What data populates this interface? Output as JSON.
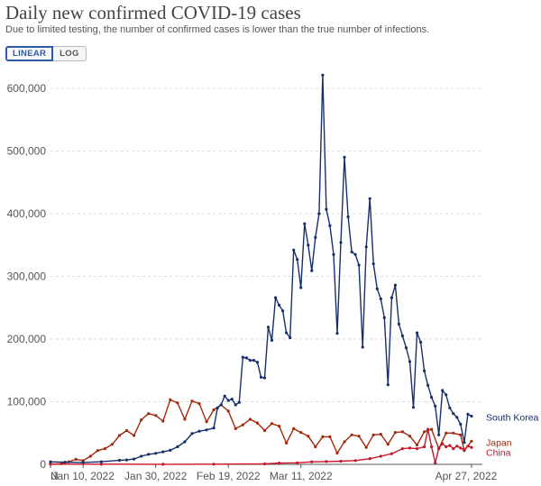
{
  "header": {
    "title": "Daily new confirmed COVID-19 cases",
    "subtitle": "Due to limited testing, the number of confirmed cases is lower than the true number of infections."
  },
  "toggle": {
    "linear_label": "LINEAR",
    "log_label": "LOG",
    "selected": "LINEAR"
  },
  "colors": {
    "south_korea": "#18306a",
    "japan": "#a3290b",
    "china": "#c8152a",
    "grid": "#dddddd",
    "axis": "#555555"
  },
  "chart_data": {
    "type": "line",
    "title": "Daily new confirmed COVID-19 cases",
    "subtitle": "Due to limited testing, the number of confirmed cases is lower than the true number of infections.",
    "x_type": "date",
    "xlim": [
      "2022-01-01",
      "2022-04-30"
    ],
    "ylim": [
      0,
      600000
    ],
    "y_ticks": [
      0,
      100000,
      200000,
      300000,
      400000,
      500000,
      600000
    ],
    "y_tick_labels": [
      "0",
      "100,000",
      "200,000",
      "300,000",
      "400,000",
      "500,000",
      "600,000"
    ],
    "x_ticks": [
      "2022-01-01",
      "2022-01-10",
      "2022-01-30",
      "2022-02-19",
      "2022-03-11",
      "2022-04-27"
    ],
    "x_tick_labels": [
      "N",
      "Jan 10, 2022",
      "Jan 30, 2022",
      "Feb 19, 2022",
      "Mar 11, 2022",
      "Apr 27, 2022"
    ],
    "grid": true,
    "legend": "inline-right",
    "series": [
      {
        "name": "South Korea",
        "points": [
          [
            "2022-01-01",
            4000
          ],
          [
            "2022-01-05",
            3500
          ],
          [
            "2022-01-10",
            3000
          ],
          [
            "2022-01-15",
            4200
          ],
          [
            "2022-01-20",
            6500
          ],
          [
            "2022-01-22",
            7000
          ],
          [
            "2022-01-24",
            8500
          ],
          [
            "2022-01-26",
            13000
          ],
          [
            "2022-01-28",
            16000
          ],
          [
            "2022-01-30",
            17500
          ],
          [
            "2022-02-01",
            20000
          ],
          [
            "2022-02-03",
            22500
          ],
          [
            "2022-02-05",
            28000
          ],
          [
            "2022-02-07",
            36000
          ],
          [
            "2022-02-09",
            49000
          ],
          [
            "2022-02-11",
            53000
          ],
          [
            "2022-02-13",
            55000
          ],
          [
            "2022-02-15",
            58000
          ],
          [
            "2022-02-16",
            90000
          ],
          [
            "2022-02-17",
            95000
          ],
          [
            "2022-02-18",
            109000
          ],
          [
            "2022-02-19",
            102000
          ],
          [
            "2022-02-20",
            104000
          ],
          [
            "2022-02-21",
            95000
          ],
          [
            "2022-02-22",
            99000
          ],
          [
            "2022-02-23",
            171000
          ],
          [
            "2022-02-24",
            170000
          ],
          [
            "2022-02-25",
            166000
          ],
          [
            "2022-02-26",
            166000
          ],
          [
            "2022-02-27",
            163000
          ],
          [
            "2022-02-28",
            139000
          ],
          [
            "2022-03-01",
            138000
          ],
          [
            "2022-03-02",
            219000
          ],
          [
            "2022-03-03",
            198000
          ],
          [
            "2022-03-04",
            266000
          ],
          [
            "2022-03-05",
            254000
          ],
          [
            "2022-03-06",
            245000
          ],
          [
            "2022-03-07",
            210000
          ],
          [
            "2022-03-08",
            202000
          ],
          [
            "2022-03-09",
            342000
          ],
          [
            "2022-03-10",
            327000
          ],
          [
            "2022-03-11",
            282000
          ],
          [
            "2022-03-12",
            384000
          ],
          [
            "2022-03-13",
            350000
          ],
          [
            "2022-03-14",
            309000
          ],
          [
            "2022-03-15",
            362000
          ],
          [
            "2022-03-16",
            400000
          ],
          [
            "2022-03-17",
            621000
          ],
          [
            "2022-03-18",
            407000
          ],
          [
            "2022-03-19",
            381000
          ],
          [
            "2022-03-20",
            335000
          ],
          [
            "2022-03-21",
            209000
          ],
          [
            "2022-03-22",
            354000
          ],
          [
            "2022-03-23",
            490000
          ],
          [
            "2022-03-24",
            395000
          ],
          [
            "2022-03-25",
            339000
          ],
          [
            "2022-03-26",
            335000
          ],
          [
            "2022-03-27",
            318000
          ],
          [
            "2022-03-28",
            187000
          ],
          [
            "2022-03-29",
            347000
          ],
          [
            "2022-03-30",
            424000
          ],
          [
            "2022-03-31",
            320000
          ],
          [
            "2022-04-01",
            280000
          ],
          [
            "2022-04-02",
            264000
          ],
          [
            "2022-04-03",
            234000
          ],
          [
            "2022-04-04",
            127000
          ],
          [
            "2022-04-05",
            266000
          ],
          [
            "2022-04-06",
            286000
          ],
          [
            "2022-04-07",
            224000
          ],
          [
            "2022-04-08",
            205000
          ],
          [
            "2022-04-09",
            186000
          ],
          [
            "2022-04-10",
            164000
          ],
          [
            "2022-04-11",
            91000
          ],
          [
            "2022-04-12",
            210000
          ],
          [
            "2022-04-13",
            195000
          ],
          [
            "2022-04-14",
            149000
          ],
          [
            "2022-04-15",
            126000
          ],
          [
            "2022-04-16",
            107000
          ],
          [
            "2022-04-17",
            93000
          ],
          [
            "2022-04-18",
            47000
          ],
          [
            "2022-04-19",
            118000
          ],
          [
            "2022-04-20",
            111000
          ],
          [
            "2022-04-21",
            90000
          ],
          [
            "2022-04-22",
            81000
          ],
          [
            "2022-04-23",
            75000
          ],
          [
            "2022-04-24",
            64000
          ],
          [
            "2022-04-25",
            35000
          ],
          [
            "2022-04-26",
            80000
          ],
          [
            "2022-04-27",
            77000
          ]
        ]
      },
      {
        "name": "Japan",
        "points": [
          [
            "2022-01-01",
            500
          ],
          [
            "2022-01-04",
            1000
          ],
          [
            "2022-01-06",
            4000
          ],
          [
            "2022-01-08",
            8000
          ],
          [
            "2022-01-10",
            6000
          ],
          [
            "2022-01-12",
            13000
          ],
          [
            "2022-01-14",
            22000
          ],
          [
            "2022-01-16",
            25000
          ],
          [
            "2022-01-18",
            32000
          ],
          [
            "2022-01-20",
            46000
          ],
          [
            "2022-01-22",
            54000
          ],
          [
            "2022-01-24",
            46000
          ],
          [
            "2022-01-26",
            71000
          ],
          [
            "2022-01-28",
            81000
          ],
          [
            "2022-01-30",
            78000
          ],
          [
            "2022-02-01",
            69000
          ],
          [
            "2022-02-03",
            103000
          ],
          [
            "2022-02-05",
            98000
          ],
          [
            "2022-02-07",
            72000
          ],
          [
            "2022-02-09",
            101000
          ],
          [
            "2022-02-11",
            97000
          ],
          [
            "2022-02-13",
            68000
          ],
          [
            "2022-02-15",
            87000
          ],
          [
            "2022-02-17",
            95000
          ],
          [
            "2022-02-19",
            85000
          ],
          [
            "2022-02-21",
            57000
          ],
          [
            "2022-02-23",
            63000
          ],
          [
            "2022-02-25",
            72000
          ],
          [
            "2022-02-27",
            66000
          ],
          [
            "2022-03-01",
            54000
          ],
          [
            "2022-03-03",
            65000
          ],
          [
            "2022-03-05",
            61000
          ],
          [
            "2022-03-07",
            34000
          ],
          [
            "2022-03-09",
            57000
          ],
          [
            "2022-03-11",
            51000
          ],
          [
            "2022-03-13",
            45000
          ],
          [
            "2022-03-15",
            28000
          ],
          [
            "2022-03-17",
            44000
          ],
          [
            "2022-03-19",
            44000
          ],
          [
            "2022-03-21",
            18000
          ],
          [
            "2022-03-23",
            36000
          ],
          [
            "2022-03-25",
            47000
          ],
          [
            "2022-03-27",
            45000
          ],
          [
            "2022-03-29",
            27000
          ],
          [
            "2022-03-31",
            47000
          ],
          [
            "2022-04-02",
            48000
          ],
          [
            "2022-04-04",
            32000
          ],
          [
            "2022-04-06",
            51000
          ],
          [
            "2022-04-08",
            52000
          ],
          [
            "2022-04-10",
            45000
          ],
          [
            "2022-04-12",
            31000
          ],
          [
            "2022-04-14",
            52000
          ],
          [
            "2022-04-16",
            56000
          ],
          [
            "2022-04-18",
            25000
          ],
          [
            "2022-04-20",
            50000
          ],
          [
            "2022-04-22",
            50000
          ],
          [
            "2022-04-24",
            47000
          ],
          [
            "2022-04-25",
            22000
          ],
          [
            "2022-04-27",
            37000
          ]
        ]
      },
      {
        "name": "China",
        "points": [
          [
            "2022-01-01",
            300
          ],
          [
            "2022-01-15",
            300
          ],
          [
            "2022-02-01",
            200
          ],
          [
            "2022-02-15",
            300
          ],
          [
            "2022-03-01",
            700
          ],
          [
            "2022-03-05",
            2000
          ],
          [
            "2022-03-10",
            2500
          ],
          [
            "2022-03-14",
            4000
          ],
          [
            "2022-03-18",
            4500
          ],
          [
            "2022-03-22",
            5000
          ],
          [
            "2022-03-26",
            6000
          ],
          [
            "2022-03-30",
            9000
          ],
          [
            "2022-04-02",
            13000
          ],
          [
            "2022-04-05",
            17000
          ],
          [
            "2022-04-08",
            25000
          ],
          [
            "2022-04-10",
            26000
          ],
          [
            "2022-04-12",
            25000
          ],
          [
            "2022-04-14",
            28000
          ],
          [
            "2022-04-15",
            56000
          ],
          [
            "2022-04-16",
            28000
          ],
          [
            "2022-04-17",
            2500
          ],
          [
            "2022-04-18",
            26000
          ],
          [
            "2022-04-19",
            33000
          ],
          [
            "2022-04-20",
            28000
          ],
          [
            "2022-04-21",
            30000
          ],
          [
            "2022-04-22",
            25000
          ],
          [
            "2022-04-23",
            29000
          ],
          [
            "2022-04-24",
            26000
          ],
          [
            "2022-04-25",
            23000
          ],
          [
            "2022-04-26",
            29000
          ],
          [
            "2022-04-27",
            27000
          ]
        ]
      }
    ]
  }
}
